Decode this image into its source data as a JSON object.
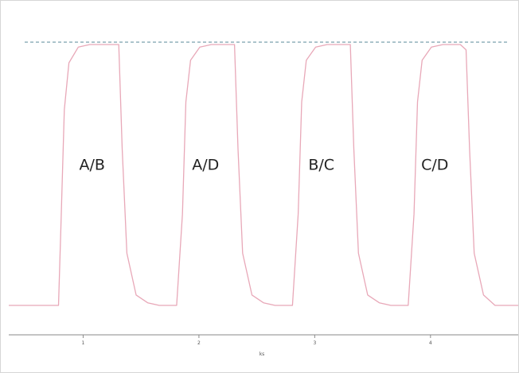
{
  "chart_data": {
    "type": "line",
    "title": "",
    "xlabel": "ks",
    "ylabel": "",
    "xlim": [
      0,
      4.4
    ],
    "ylim": [
      0,
      1.05
    ],
    "grid": false,
    "legend": "none",
    "x_ticks": [
      1,
      2,
      3,
      4
    ],
    "x_tick_labels": [
      "1",
      "2",
      "3",
      "4"
    ],
    "reference_line": {
      "y": 1.0,
      "style": "dashed",
      "color": "#5a8a9a"
    },
    "series": [
      {
        "color": "#e8a8b8",
        "x": [
          0.0,
          0.43,
          0.45,
          0.48,
          0.52,
          0.6,
          0.7,
          0.85,
          0.95,
          0.98,
          1.02,
          1.1,
          1.2,
          1.3,
          1.45,
          1.5,
          1.53,
          1.57,
          1.65,
          1.75,
          1.9,
          1.95,
          1.98,
          2.02,
          2.1,
          2.2,
          2.3,
          2.45,
          2.5,
          2.53,
          2.57,
          2.65,
          2.75,
          2.9,
          2.95,
          2.98,
          3.02,
          3.1,
          3.2,
          3.3,
          3.45,
          3.5,
          3.53,
          3.57,
          3.65,
          3.75,
          3.9,
          3.95,
          3.98,
          4.02,
          4.1,
          4.2,
          4.4
        ],
        "y": [
          0.0,
          0.0,
          0.3,
          0.75,
          0.93,
          0.99,
          1.0,
          1.0,
          1.0,
          0.6,
          0.2,
          0.04,
          0.01,
          0.0,
          0.0,
          0.35,
          0.78,
          0.94,
          0.99,
          1.0,
          1.0,
          1.0,
          0.6,
          0.2,
          0.04,
          0.01,
          0.0,
          0.0,
          0.35,
          0.78,
          0.94,
          0.99,
          1.0,
          1.0,
          1.0,
          0.6,
          0.2,
          0.04,
          0.01,
          0.0,
          0.0,
          0.35,
          0.78,
          0.94,
          0.99,
          1.0,
          1.0,
          0.98,
          0.6,
          0.2,
          0.04,
          0.0,
          0.0
        ]
      }
    ],
    "annotations": [
      {
        "text": "A/B",
        "x": 0.72,
        "y": 0.52
      },
      {
        "text": "A/D",
        "x": 1.7,
        "y": 0.52
      },
      {
        "text": "B/C",
        "x": 2.7,
        "y": 0.52
      },
      {
        "text": "C/D",
        "x": 3.68,
        "y": 0.52
      }
    ]
  }
}
